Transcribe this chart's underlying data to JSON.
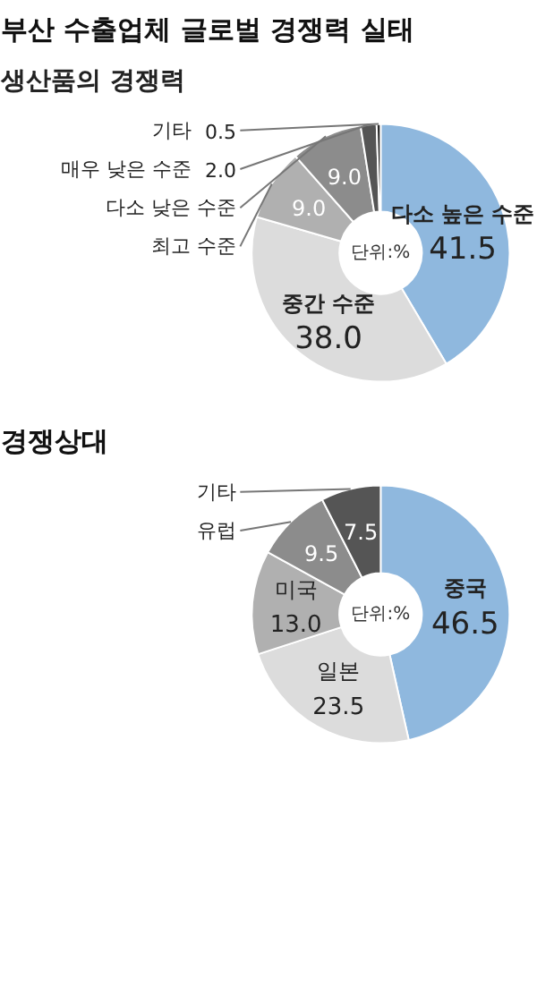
{
  "chart_data": [
    {
      "type": "donut",
      "title": "부산 수출업체 글로벌 경쟁력 실태",
      "subtitle": "생산품의 경쟁력",
      "categories": [
        "다소 높은 수준",
        "중간 수준",
        "최고 수준",
        "다소 낮은 수준",
        "매우 낮은 수준",
        "기타"
      ],
      "values": [
        41.5,
        38.0,
        9.0,
        9.0,
        2.0,
        0.5
      ],
      "colors": [
        "#8fb8de",
        "#dcdcdc",
        "#b0b0b0",
        "#8c8c8c",
        "#555555",
        "#2b2b2b"
      ],
      "value_labels": [
        "41.5",
        "38.0",
        "9.0",
        "9.0",
        "2.0",
        "0.5"
      ],
      "annotations": [
        "단위:%"
      ]
    },
    {
      "type": "donut",
      "title": "경쟁상대",
      "categories": [
        "중국",
        "일본",
        "미국",
        "유럽",
        "기타"
      ],
      "values": [
        46.5,
        23.5,
        13.0,
        9.5,
        7.5
      ],
      "colors": [
        "#8fb8de",
        "#dcdcdc",
        "#b0b0b0",
        "#8c8c8c",
        "#555555"
      ],
      "value_labels": [
        "46.5",
        "23.5",
        "13.0",
        "9.5",
        "7.5"
      ],
      "annotations": [
        "단위:%"
      ]
    }
  ]
}
